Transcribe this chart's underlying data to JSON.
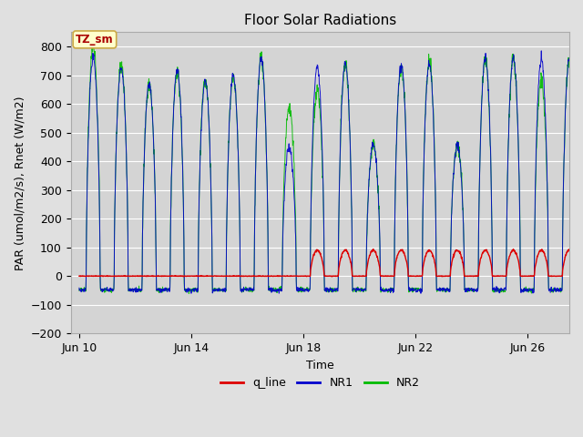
{
  "title": "Floor Solar Radiations",
  "xlabel": "Time",
  "ylabel": "PAR (umol/m2/s), Rnet (W/m2)",
  "ylim": [
    -200,
    850
  ],
  "yticks": [
    -200,
    -100,
    0,
    100,
    200,
    300,
    400,
    500,
    600,
    700,
    800
  ],
  "xtick_labels": [
    "Jun 10",
    "Jun 14",
    "Jun 18",
    "Jun 22",
    "Jun 26"
  ],
  "xtick_positions": [
    0,
    4,
    8,
    12,
    16
  ],
  "background_color": "#e0e0e0",
  "plot_bg_color": "#d4d4d4",
  "grid_color": "#ffffff",
  "line_colors": {
    "q_line": "#dd0000",
    "NR1": "#0000cc",
    "NR2": "#00bb00"
  },
  "legend_label": "TZ_sm",
  "legend_bg": "#ffffcc",
  "legend_border": "#ccaa44",
  "figsize": [
    6.4,
    4.8
  ],
  "dpi": 100
}
